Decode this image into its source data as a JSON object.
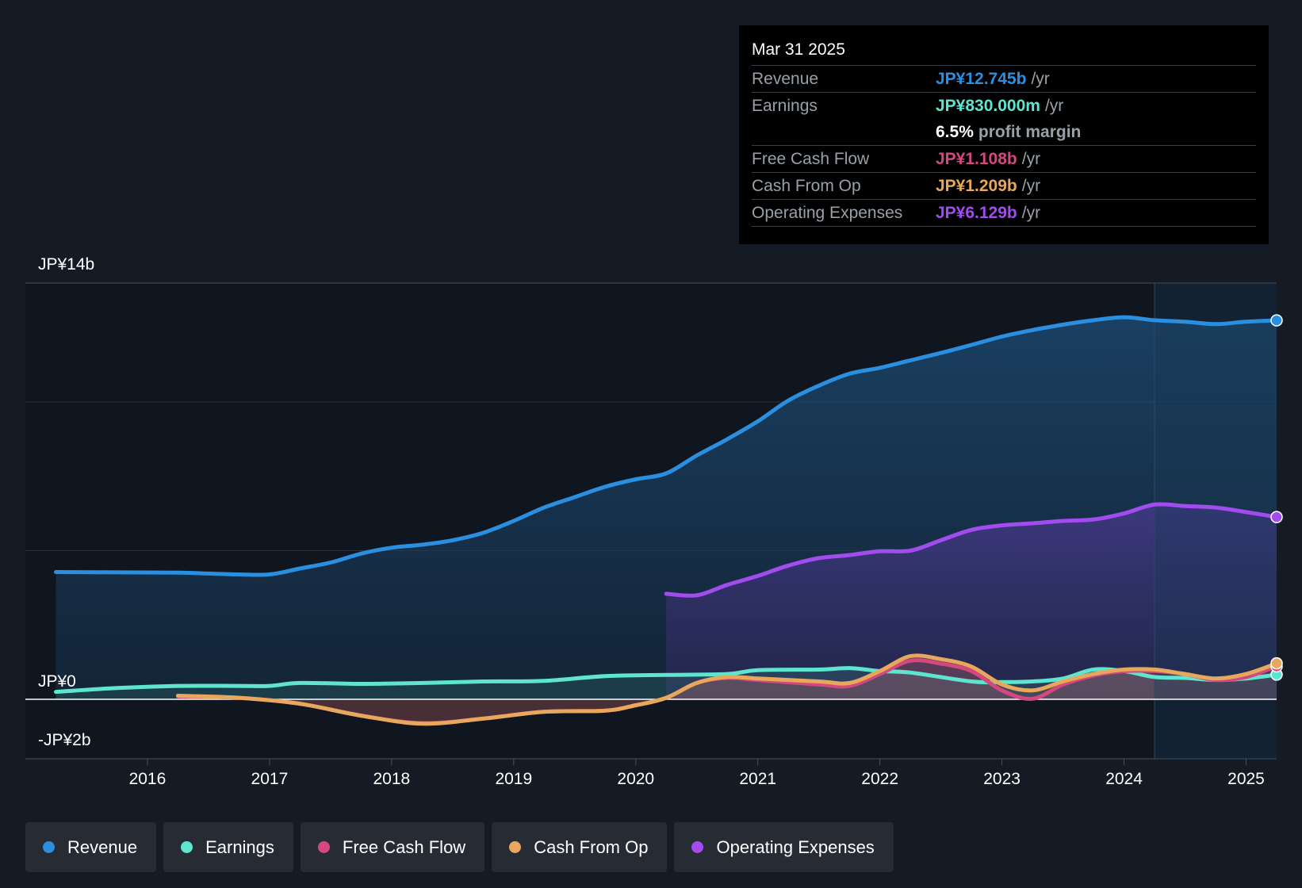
{
  "tooltip": {
    "date": "Mar 31 2025",
    "rows": [
      {
        "label": "Revenue",
        "value": "JP¥12.745b",
        "unit": "/yr",
        "color": "#2a8fe0"
      },
      {
        "label": "Earnings",
        "value": "JP¥830.000m",
        "unit": "/yr",
        "color": "#5ee5d0"
      },
      {
        "label": "",
        "value": "6.5%",
        "unit": "profit margin",
        "color": "#ffffff"
      },
      {
        "label": "Free Cash Flow",
        "value": "JP¥1.108b",
        "unit": "/yr",
        "color": "#d4477f"
      },
      {
        "label": "Cash From Op",
        "value": "JP¥1.209b",
        "unit": "/yr",
        "color": "#e8a85c"
      },
      {
        "label": "Operating Expenses",
        "value": "JP¥6.129b",
        "unit": "/yr",
        "color": "#a24cf0"
      }
    ]
  },
  "legend": [
    {
      "label": "Revenue",
      "color": "#2a8fe0"
    },
    {
      "label": "Earnings",
      "color": "#5ee5d0"
    },
    {
      "label": "Free Cash Flow",
      "color": "#d4477f"
    },
    {
      "label": "Cash From Op",
      "color": "#e8a85c"
    },
    {
      "label": "Operating Expenses",
      "color": "#a24cf0"
    }
  ],
  "chart_data": {
    "type": "area",
    "title": "",
    "y_axis_labels": {
      "top": "JP¥14b",
      "zero": "JP¥0",
      "bottom": "-JP¥2b"
    },
    "ylim": [
      -2,
      14
    ],
    "xlim": [
      2015.0,
      2025.25
    ],
    "x_ticks": [
      2016,
      2017,
      2018,
      2019,
      2020,
      2021,
      2022,
      2023,
      2024,
      2025
    ],
    "x_tick_labels": [
      "2016",
      "2017",
      "2018",
      "2019",
      "2020",
      "2021",
      "2022",
      "2023",
      "2024",
      "2025"
    ],
    "highlight_from": 2024.25,
    "units": "JP¥ billions",
    "series": [
      {
        "name": "Revenue",
        "color": "#2a8fe0",
        "x": [
          2015.25,
          2015.75,
          2016.25,
          2016.5,
          2016.75,
          2017.0,
          2017.25,
          2017.5,
          2017.75,
          2018.0,
          2018.25,
          2018.5,
          2018.75,
          2019.0,
          2019.25,
          2019.5,
          2019.75,
          2020.0,
          2020.25,
          2020.5,
          2020.75,
          2021.0,
          2021.25,
          2021.5,
          2021.75,
          2022.0,
          2022.25,
          2022.5,
          2022.75,
          2023.0,
          2023.25,
          2023.5,
          2023.75,
          2024.0,
          2024.25,
          2024.5,
          2024.75,
          2025.0,
          2025.25
        ],
        "values": [
          4.28,
          4.27,
          4.26,
          4.23,
          4.2,
          4.2,
          4.4,
          4.6,
          4.9,
          5.1,
          5.2,
          5.35,
          5.6,
          6.0,
          6.45,
          6.8,
          7.15,
          7.4,
          7.6,
          8.2,
          8.75,
          9.35,
          10.05,
          10.55,
          10.95,
          11.15,
          11.4,
          11.65,
          11.92,
          12.2,
          12.42,
          12.6,
          12.75,
          12.85,
          12.75,
          12.7,
          12.62,
          12.7,
          12.745
        ]
      },
      {
        "name": "Operating Expenses",
        "color": "#a24cf0",
        "x": [
          2020.25,
          2020.5,
          2020.75,
          2021.0,
          2021.25,
          2021.5,
          2021.75,
          2022.0,
          2022.25,
          2022.5,
          2022.75,
          2023.0,
          2023.25,
          2023.5,
          2023.75,
          2024.0,
          2024.25,
          2024.5,
          2024.75,
          2025.0,
          2025.25
        ],
        "values": [
          3.55,
          3.5,
          3.85,
          4.15,
          4.5,
          4.75,
          4.85,
          4.98,
          5.0,
          5.35,
          5.7,
          5.85,
          5.92,
          6.0,
          6.05,
          6.25,
          6.55,
          6.5,
          6.45,
          6.3,
          6.129
        ]
      },
      {
        "name": "Earnings",
        "color": "#5ee5d0",
        "x": [
          2015.25,
          2015.75,
          2016.25,
          2016.75,
          2017.0,
          2017.25,
          2017.75,
          2018.25,
          2018.75,
          2019.25,
          2019.75,
          2020.25,
          2020.75,
          2021.0,
          2021.5,
          2021.75,
          2022.0,
          2022.25,
          2022.75,
          2023.0,
          2023.25,
          2023.5,
          2023.75,
          2024.0,
          2024.25,
          2024.5,
          2024.75,
          2025.0,
          2025.25
        ],
        "values": [
          0.25,
          0.38,
          0.45,
          0.45,
          0.45,
          0.55,
          0.52,
          0.55,
          0.6,
          0.62,
          0.78,
          0.82,
          0.85,
          0.98,
          1.0,
          1.05,
          0.95,
          0.9,
          0.6,
          0.58,
          0.6,
          0.7,
          1.0,
          0.95,
          0.75,
          0.72,
          0.65,
          0.7,
          0.83
        ]
      },
      {
        "name": "Free Cash Flow",
        "color": "#d4477f",
        "x": [
          2016.25,
          2016.75,
          2017.25,
          2017.75,
          2018.25,
          2018.75,
          2019.25,
          2019.75,
          2020.0,
          2020.25,
          2020.5,
          2020.75,
          2021.0,
          2021.5,
          2021.75,
          2022.0,
          2022.25,
          2022.5,
          2022.75,
          2023.0,
          2023.25,
          2023.5,
          2023.75,
          2024.0,
          2024.25,
          2024.5,
          2024.75,
          2025.0,
          2025.25
        ],
        "values": [
          0.1,
          0.05,
          -0.15,
          -0.55,
          -0.8,
          -0.65,
          -0.42,
          -0.38,
          -0.2,
          0.05,
          0.55,
          0.72,
          0.65,
          0.5,
          0.45,
          0.85,
          1.3,
          1.2,
          0.95,
          0.3,
          0.02,
          0.5,
          0.8,
          0.95,
          0.95,
          0.85,
          0.65,
          0.75,
          1.108
        ]
      },
      {
        "name": "Cash From Op",
        "color": "#e8a85c",
        "x": [
          2016.25,
          2016.75,
          2017.25,
          2017.75,
          2018.25,
          2018.75,
          2019.25,
          2019.75,
          2020.0,
          2020.25,
          2020.5,
          2020.75,
          2021.0,
          2021.5,
          2021.75,
          2022.0,
          2022.25,
          2022.5,
          2022.75,
          2023.0,
          2023.25,
          2023.5,
          2023.75,
          2024.0,
          2024.25,
          2024.5,
          2024.75,
          2025.0,
          2025.25
        ],
        "values": [
          0.12,
          0.05,
          -0.15,
          -0.55,
          -0.82,
          -0.65,
          -0.42,
          -0.38,
          -0.2,
          0.05,
          0.55,
          0.75,
          0.7,
          0.6,
          0.55,
          0.95,
          1.45,
          1.35,
          1.1,
          0.5,
          0.3,
          0.6,
          0.85,
          1.0,
          1.0,
          0.85,
          0.7,
          0.85,
          1.209
        ]
      }
    ]
  }
}
